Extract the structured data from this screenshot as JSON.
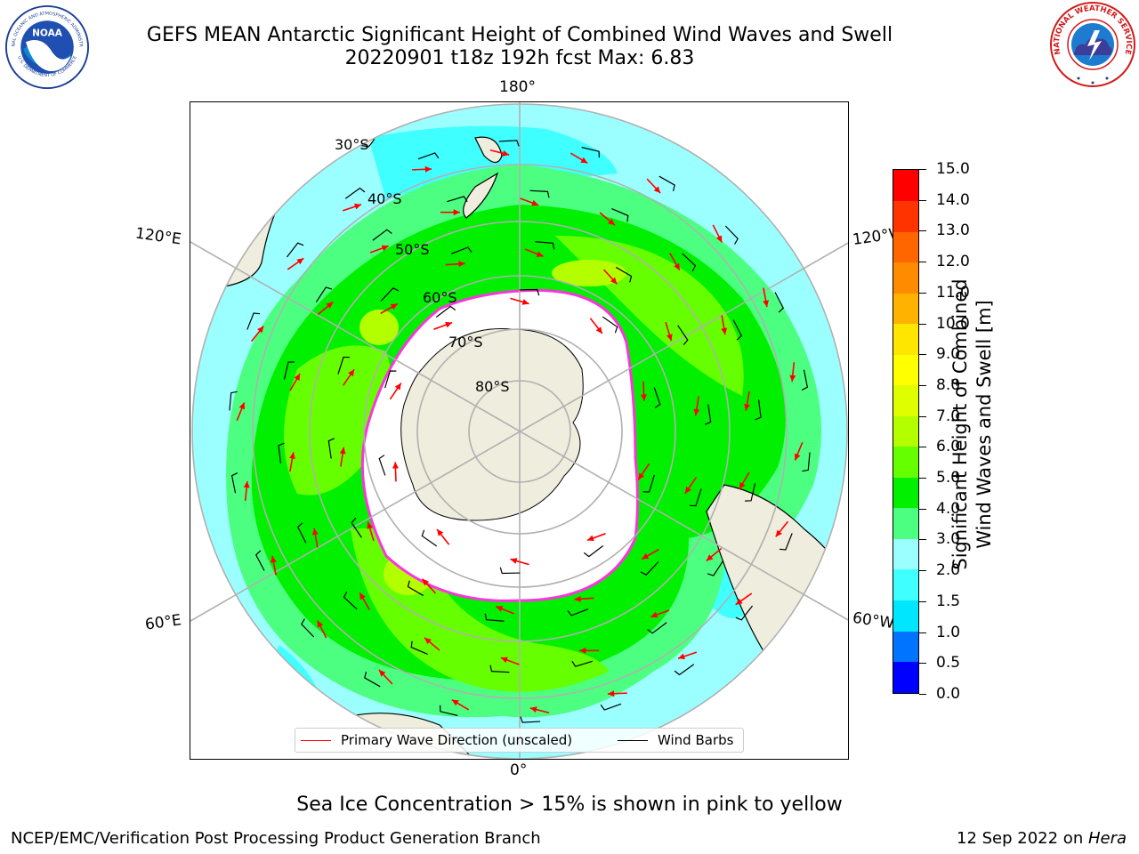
{
  "header": {
    "title_line1": "GEFS MEAN Antarctic Significant Height of Combined Wind Waves and Swell",
    "title_line2": "20220901 t18z 192h fcst   Max: 6.83"
  },
  "logos": {
    "noaa_text": "NOAA",
    "noaa_ring_top": "NATIONAL OCEANIC AND ATMOSPHERIC ADMINISTRATION",
    "noaa_ring_bottom": "U.S. DEPARTMENT OF COMMERCE",
    "nws_ring": "NATIONAL WEATHER SERVICE"
  },
  "map": {
    "longitude_labels": {
      "top": "180°",
      "bottom": "0°",
      "upper_left": "120°E",
      "upper_right": "120°W",
      "lower_left": "60°E",
      "lower_right": "60°W"
    },
    "latitude_labels": [
      "30°S",
      "40°S",
      "50°S",
      "60°S",
      "70°S",
      "80°S"
    ],
    "colors": {
      "land": "#efedde",
      "ice": "#ffffff",
      "grid": "#b0b0b0",
      "wave_arrow": "#ff0000",
      "wind_barb": "#000000"
    }
  },
  "legend": {
    "wave_label": "Primary Wave Direction (unscaled)",
    "wave_color": "#ff0000",
    "barb_label": "Wind Barbs",
    "barb_color": "#000000"
  },
  "colorbar": {
    "title_line1": "Significant Height of Combined",
    "title_line2": "Wind Waves and Swell [m]",
    "ticks": [
      "0.0",
      "0.5",
      "1.0",
      "1.5",
      "2.0",
      "3.0",
      "4.0",
      "5.0",
      "6.0",
      "7.0",
      "8.0",
      "9.0",
      "10.0",
      "11.0",
      "12.0",
      "13.0",
      "14.0",
      "15.0"
    ],
    "colors": [
      "#0000ff",
      "#0073ff",
      "#00e6ff",
      "#40ffff",
      "#9cffff",
      "#4dff80",
      "#00f000",
      "#66ff00",
      "#b3ff00",
      "#dfff00",
      "#ffff00",
      "#ffe600",
      "#ffb300",
      "#ff8c00",
      "#ff6600",
      "#ff3300",
      "#ff0000"
    ]
  },
  "caption": "Sea Ice Concentration > 15% is shown in pink to yellow",
  "footer": {
    "left": "NCEP/EMC/Verification Post Processing Product Generation Branch",
    "right_date": "12 Sep 2022 on ",
    "right_machine": "Hera"
  }
}
